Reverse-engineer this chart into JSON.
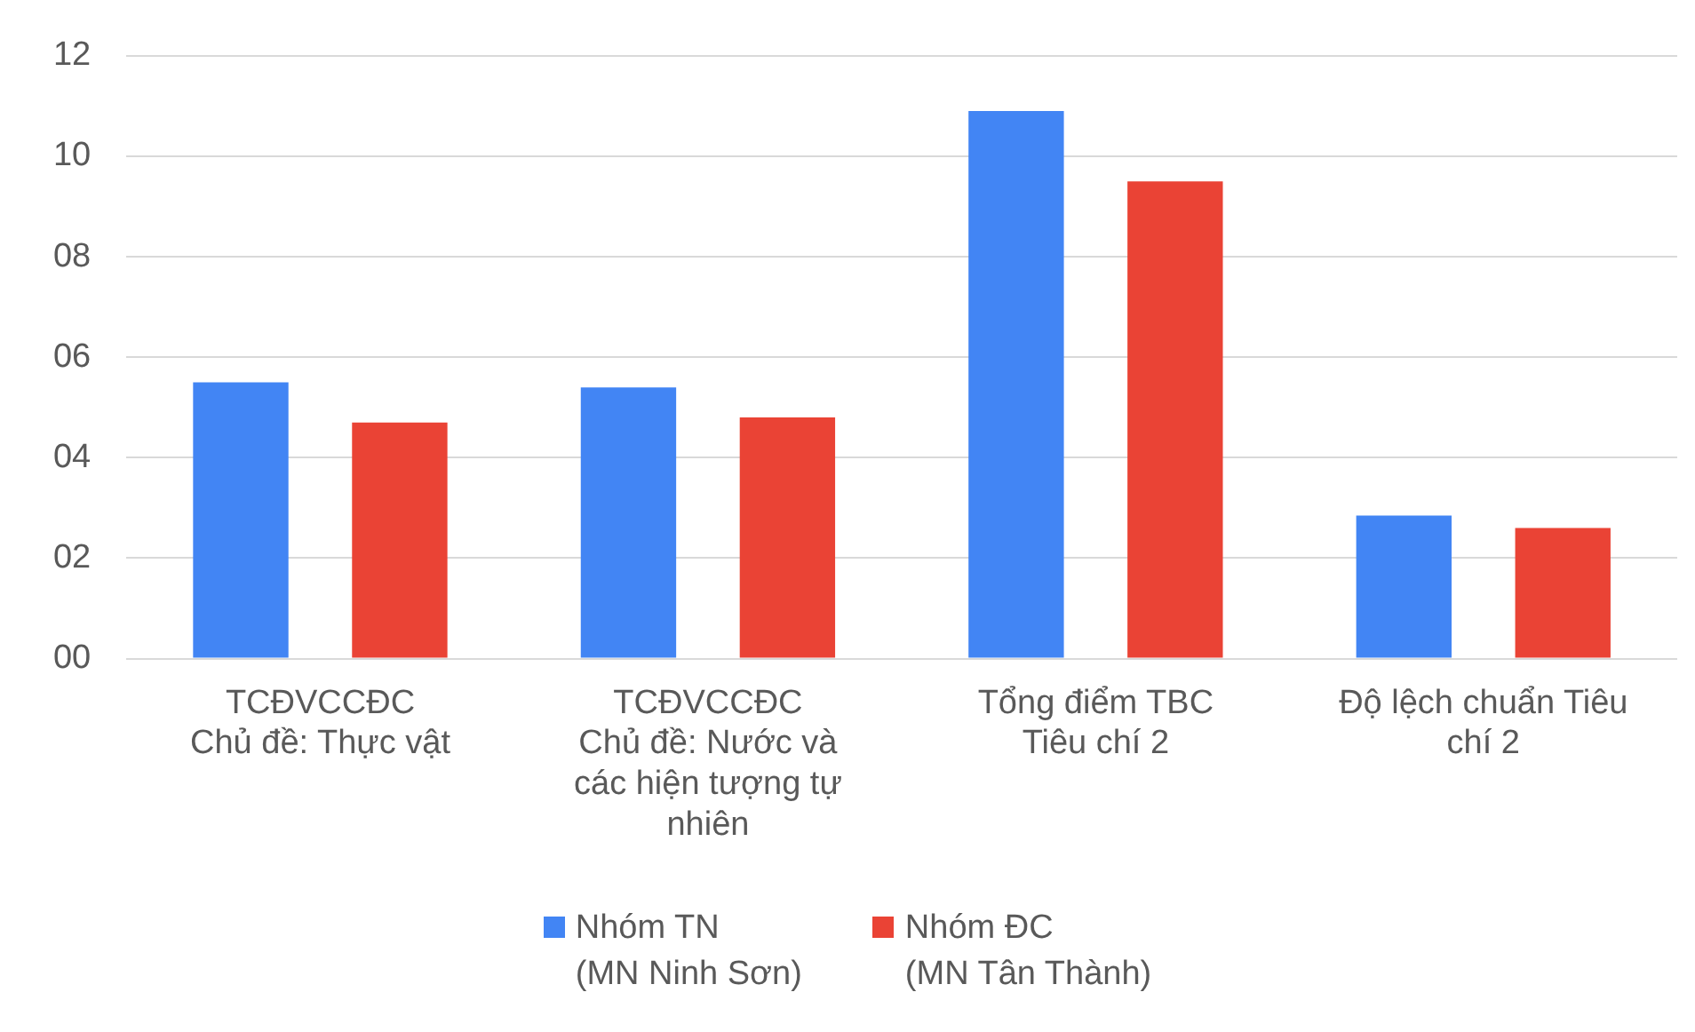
{
  "chart_data": {
    "type": "bar",
    "categories": [
      "TCĐVCCĐC\nChủ đề: Thực vật",
      "TCĐVCCĐC\nChủ đề: Nước và\ncác hiện tượng tự\nnhiên",
      "Tổng điểm TBC\nTiêu chí 2",
      "Độ lệch chuẩn Tiêu\nchí 2"
    ],
    "series": [
      {
        "name": "Nhóm TN\n(MN Ninh Sơn)",
        "color": "#4285f4",
        "values": [
          5.5,
          5.4,
          10.9,
          2.85
        ]
      },
      {
        "name": "Nhóm ĐC\n(MN Tân Thành)",
        "color": "#ea4335",
        "values": [
          4.7,
          4.8,
          9.5,
          2.6
        ]
      }
    ],
    "ylim": [
      0,
      12
    ],
    "yticks": [
      {
        "value": 0,
        "label": "00"
      },
      {
        "value": 2,
        "label": "02"
      },
      {
        "value": 4,
        "label": "04"
      },
      {
        "value": 6,
        "label": "06"
      },
      {
        "value": 8,
        "label": "08"
      },
      10,
      12
    ],
    "grid": "y",
    "legend": "bottom"
  }
}
